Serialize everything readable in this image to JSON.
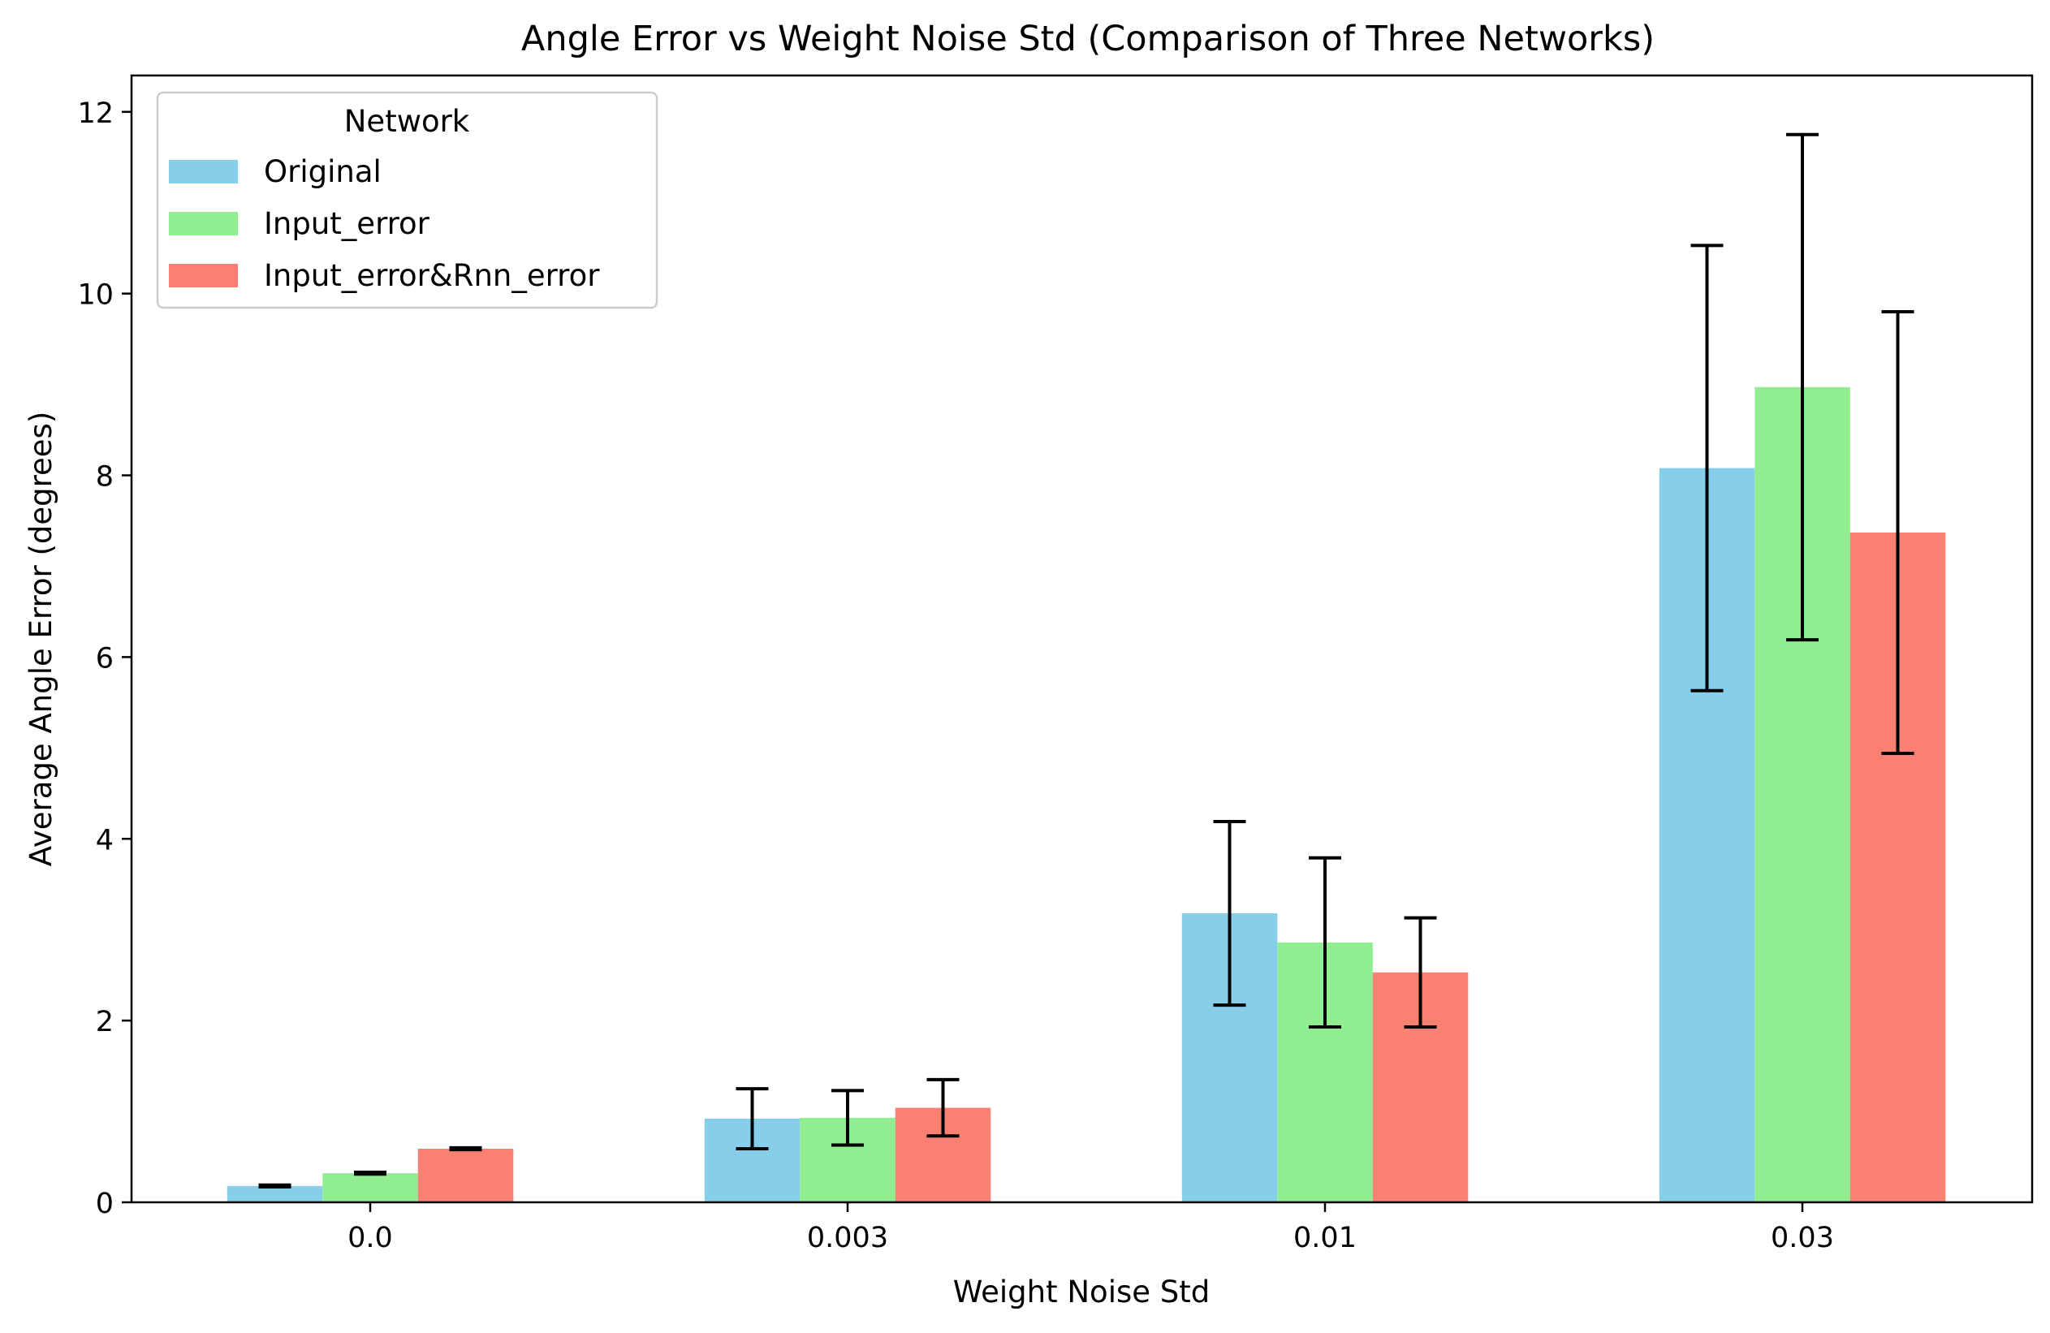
{
  "chart_data": {
    "type": "bar",
    "title": "Angle Error vs Weight Noise Std (Comparison of Three Networks)",
    "xlabel": "Weight Noise Std",
    "ylabel": "Average Angle Error (degrees)",
    "categories": [
      "0.0",
      "0.003",
      "0.01",
      "0.03"
    ],
    "ylim": [
      0,
      12.4
    ],
    "yticks": [
      0,
      2,
      4,
      6,
      8,
      10,
      12
    ],
    "grid": false,
    "legend": {
      "title": "Network",
      "placement": "top-left"
    },
    "error_bars": true,
    "series": [
      {
        "name": "Original",
        "color": "#87CEEB",
        "values": [
          0.18,
          0.92,
          3.18,
          8.08
        ],
        "errors": [
          0.01,
          0.33,
          1.01,
          2.45
        ]
      },
      {
        "name": "Input_error",
        "color": "#90EE90",
        "values": [
          0.32,
          0.93,
          2.86,
          8.97
        ],
        "errors": [
          0.01,
          0.3,
          0.93,
          2.78
        ]
      },
      {
        "name": "Input_error&Rnn_error",
        "color": "#FA8072",
        "values": [
          0.59,
          1.04,
          2.53,
          7.37
        ],
        "errors": [
          0.01,
          0.31,
          0.6,
          2.43
        ]
      }
    ]
  }
}
